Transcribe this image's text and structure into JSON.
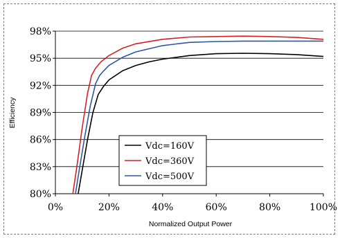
{
  "chart_data": {
    "type": "line",
    "title": "",
    "xlabel": "Normalized Output Power",
    "ylabel": "Efficiency",
    "xlim": [
      0,
      100
    ],
    "ylim": [
      80,
      98
    ],
    "x_ticks": [
      0,
      20,
      40,
      60,
      80,
      100
    ],
    "x_tick_labels": [
      "0%",
      "20%",
      "40%",
      "60%",
      "80%",
      "100%"
    ],
    "y_ticks": [
      80,
      83,
      86,
      89,
      92,
      95,
      98
    ],
    "y_tick_labels": [
      "80%",
      "83%",
      "86%",
      "89%",
      "92%",
      "95%",
      "98%"
    ],
    "grid": "horizontal",
    "legend_position": "lower-center",
    "series": [
      {
        "name": "Vdc=160V",
        "color": "#000000",
        "x": [
          8.5,
          10,
          12,
          14,
          16,
          18,
          20,
          25,
          30,
          35,
          40,
          50,
          60,
          70,
          80,
          90,
          100
        ],
        "y": [
          80,
          82.6,
          86.0,
          89.0,
          91.0,
          91.9,
          92.6,
          93.6,
          94.2,
          94.6,
          94.9,
          95.3,
          95.5,
          95.55,
          95.5,
          95.4,
          95.2
        ]
      },
      {
        "name": "Vdc=360V",
        "color": "#d42020",
        "x": [
          6.5,
          8,
          10,
          12,
          13.5,
          15,
          17,
          20,
          25,
          30,
          40,
          50,
          60,
          70,
          80,
          90,
          100
        ],
        "y": [
          80,
          83.0,
          87.3,
          91.1,
          93.1,
          93.9,
          94.6,
          95.3,
          96.1,
          96.6,
          97.1,
          97.35,
          97.4,
          97.45,
          97.4,
          97.3,
          97.1
        ]
      },
      {
        "name": "Vdc=500V",
        "color": "#2a55a8",
        "x": [
          7.5,
          9,
          11,
          13,
          15,
          16.5,
          18,
          20,
          25,
          30,
          40,
          50,
          60,
          70,
          80,
          90,
          100
        ],
        "y": [
          80,
          82.8,
          86.4,
          89.7,
          92.2,
          93.1,
          93.6,
          94.2,
          95.1,
          95.7,
          96.4,
          96.75,
          96.85,
          96.9,
          96.9,
          96.9,
          96.9
        ]
      }
    ]
  }
}
